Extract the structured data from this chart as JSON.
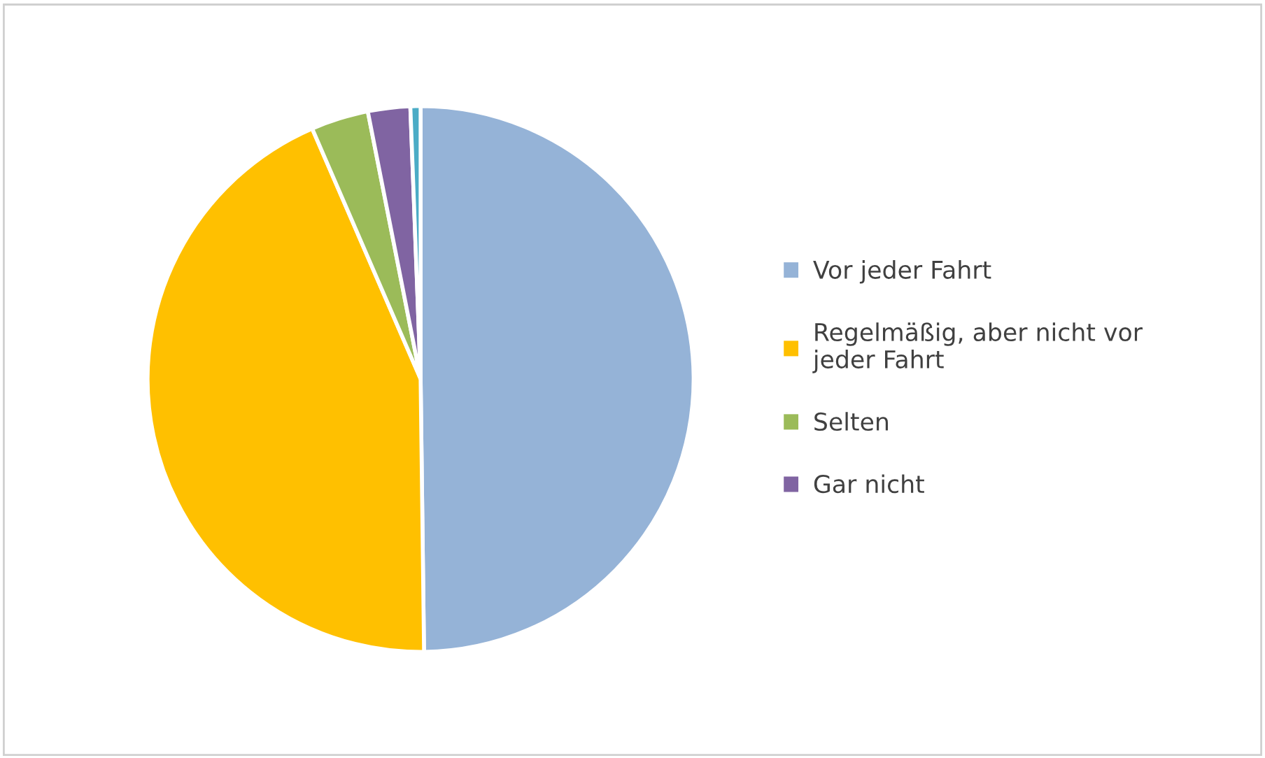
{
  "chart_data": {
    "type": "pie",
    "categories": [
      "Vor jeder Fahrt",
      "Regelmäßig, aber nicht vor jeder Fahrt",
      "Selten",
      "Gar nicht",
      null
    ],
    "values": [
      49.8,
      43.7,
      3.4,
      2.5,
      0.6
    ],
    "colors": [
      "#95b3d7",
      "#ffc000",
      "#9bbb59",
      "#8064a2",
      "#4bacc6"
    ],
    "legend": "right"
  }
}
